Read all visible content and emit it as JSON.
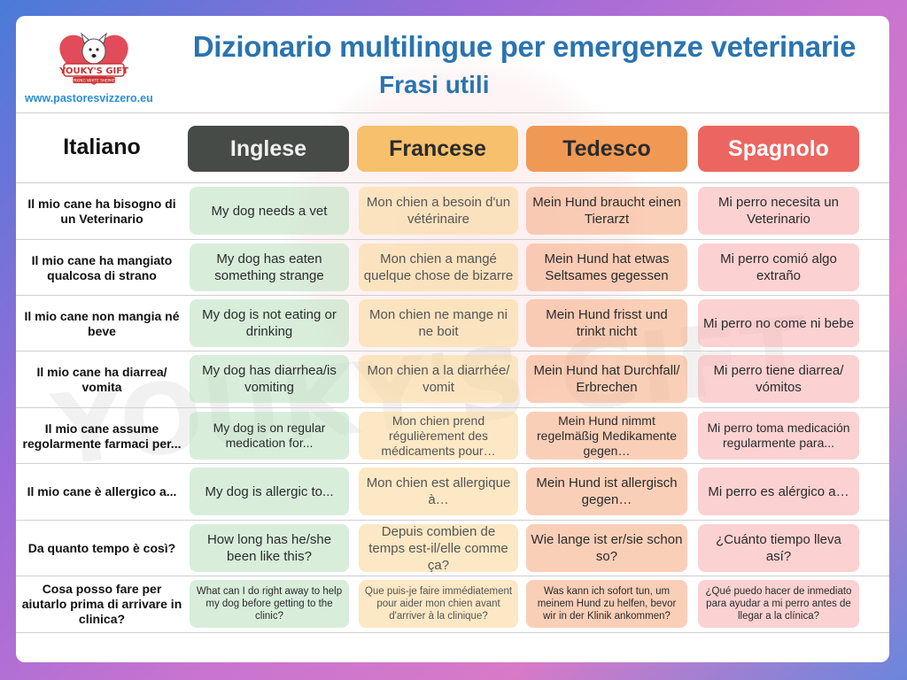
{
  "header": {
    "title": "Dizionario multilingue per emergenze veterinarie",
    "subtitle": "Frasi utili",
    "website": "www.pastoresvizzero.eu",
    "logo_text": "YOUKY'S GIFT",
    "logo_subtext": "WORKING WHITE SHEPHERD"
  },
  "columns": [
    "Italiano",
    "Inglese",
    "Francese",
    "Tedesco",
    "Spagnolo"
  ],
  "colors": {
    "title": "#2a74b0",
    "inglese": "#474b48",
    "francese": "#f6c06d",
    "tedesco": "#ef9955",
    "spagnolo": "#ec6661"
  },
  "rows": [
    {
      "it": "Il mio cane ha bisogno di un Veterinario",
      "en": "My dog needs a vet",
      "fr": "Mon chien a besoin d'un vétérinaire",
      "de": "Mein Hund braucht einen Tierarzt",
      "es": "Mi perro necesita un Veterinario"
    },
    {
      "it": "Il mio cane ha mangiato qualcosa di strano",
      "en": "My dog has eaten something strange",
      "fr": "Mon chien a mangé quelque chose de bizarre",
      "de": "Mein Hund hat etwas Seltsames gegessen",
      "es": "Mi perro comió algo extraño"
    },
    {
      "it": "Il mio cane non mangia né beve",
      "en": "My dog is not eating or drinking",
      "fr": "Mon chien ne mange ni ne boit",
      "de": "Mein Hund frisst und trinkt nicht",
      "es": "Mi perro no come ni bebe"
    },
    {
      "it": "Il mio cane ha diarrea/ vomita",
      "en": "My dog has diarrhea/is vomiting",
      "fr": "Mon chien a la diarrhée/ vomit",
      "de": "Mein Hund hat Durchfall/ Erbrechen",
      "es": "Mi perro tiene diarrea/ vómitos"
    },
    {
      "it": "Il mio cane assume regolarmente farmaci per...",
      "en": "My dog is on regular medication for...",
      "fr": "Mon chien prend régulièrement des médicaments pour…",
      "de": "Mein Hund nimmt regelmäßig Medikamente gegen…",
      "es": "Mi perro toma medicación regularmente para..."
    },
    {
      "it": "Il mio cane è allergico a...",
      "en": "My dog is allergic to...",
      "fr": "Mon chien est allergique à…",
      "de": "Mein Hund ist allergisch gegen…",
      "es": "Mi perro es alérgico a…"
    },
    {
      "it": "Da quanto tempo è così?",
      "en": "How long has he/she been like this?",
      "fr": "Depuis combien de temps est-il/elle comme ça?",
      "de": "Wie lange ist er/sie schon so?",
      "es": "¿Cuánto tiempo lleva así?"
    },
    {
      "it": "Cosa posso fare per aiutarlo prima di arrivare in clinica?",
      "en": "What can I do right away to help my dog before getting to the clinic?",
      "fr": "Que puis-je faire immédiatement pour aider mon chien avant d'arriver à la clinique?",
      "de": "Was kann ich sofort tun, um meinem Hund zu helfen, bevor wir in der Klinik ankommen?",
      "es": "¿Qué puedo hacer de inmediato para ayudar a mi perro antes de llegar a la clínica?"
    }
  ]
}
